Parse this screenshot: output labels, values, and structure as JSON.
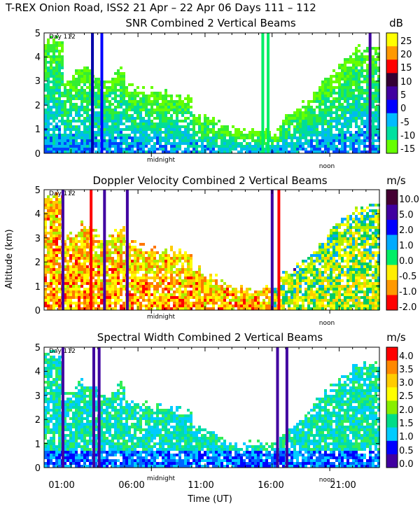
{
  "figure_title": "T-REX Onion Road, ISS2  21 Apr – 22 Apr 06 Days 111 – 112",
  "shared_ylabel": "Altitude (km)",
  "shared_xlabel": "Time (UT)",
  "chart_data": [
    {
      "id": "snr",
      "type": "heatmap",
      "title": "SNR Combined 2 Vertical Beams",
      "units": "dB",
      "x_range_hours": [
        23.0,
        48.0
      ],
      "ylim_km": [
        0,
        5
      ],
      "y_ticks": [
        0,
        1,
        2,
        3,
        4,
        5
      ],
      "day_marker": "Day 112",
      "midnight_label": "midnight",
      "noon_label": "noon",
      "midnight_hour": 31.0,
      "noon_hour": 44.3,
      "colorbar_ticks": [
        "25",
        "20",
        "15",
        "10",
        "5",
        "0",
        "-5",
        "-10",
        "-15"
      ],
      "colorbar_colors": [
        "#ffff00",
        "#ff9900",
        "#ff0000",
        "#330033",
        "#4000a0",
        "#0000ff",
        "#00bbff",
        "#00e0a0",
        "#66ff00"
      ],
      "value_colors_low_to_high": [
        "#66ff00",
        "#33ee33",
        "#00dd99",
        "#00bbee",
        "#0044ff",
        "#0000cc",
        "#330066"
      ]
    },
    {
      "id": "doppler",
      "type": "heatmap",
      "title": "Doppler Velocity Combined 2 Vertical Beams",
      "units": "m/s",
      "x_range_hours": [
        23.0,
        48.0
      ],
      "ylim_km": [
        0,
        5
      ],
      "y_ticks": [
        0,
        1,
        2,
        3,
        4,
        5
      ],
      "day_marker": "Day 112",
      "midnight_label": "midnight",
      "noon_label": "noon",
      "midnight_hour": 31.0,
      "noon_hour": 44.3,
      "colorbar_ticks": [
        "10.0",
        "5.0",
        "2.0",
        "1.0",
        "0.0",
        "-0.5",
        "-1.0",
        "-2.0"
      ],
      "colorbar_colors": [
        "#440033",
        "#4000a0",
        "#0000ff",
        "#00aaff",
        "#00ee66",
        "#ffee00",
        "#ff9900",
        "#ff0000"
      ],
      "value_colors_low_to_high": [
        "#ff0000",
        "#ff7700",
        "#ffcc00",
        "#ffff00",
        "#aaee00",
        "#00cc66",
        "#00aaff",
        "#4000a0"
      ]
    },
    {
      "id": "width",
      "type": "heatmap",
      "title": "Spectral Width Combined 2 Vertical Beams",
      "units": "m/s",
      "x_range_hours": [
        23.0,
        48.0
      ],
      "ylim_km": [
        0,
        5
      ],
      "y_ticks": [
        0,
        1,
        2,
        3,
        4,
        5
      ],
      "day_marker": "Day 112",
      "midnight_label": "midnight",
      "noon_label": "noon",
      "midnight_hour": 31.0,
      "noon_hour": 44.3,
      "colorbar_ticks": [
        "4.0",
        "3.5",
        "3.0",
        "2.5",
        "2.0",
        "1.5",
        "1.0",
        "0.5",
        "0.0"
      ],
      "colorbar_colors": [
        "#ff0000",
        "#ff8800",
        "#ffcc00",
        "#ffff00",
        "#88ee00",
        "#00dd88",
        "#00ccff",
        "#0000ff",
        "#4000a0"
      ],
      "value_colors_low_to_high": [
        "#4000a0",
        "#0000ff",
        "#0066ff",
        "#00ccff",
        "#00ddaa",
        "#33ee55",
        "#ccee00",
        "#ff9900"
      ]
    }
  ],
  "x_axis": {
    "tick_labels": [
      {
        "label": "01:00",
        "hour": 25
      },
      {
        "label": "06:00",
        "hour": 30
      },
      {
        "label": "11:00",
        "hour": 35
      },
      {
        "label": "16:00",
        "hour": 40
      },
      {
        "label": "21:00",
        "hour": 45
      }
    ]
  }
}
